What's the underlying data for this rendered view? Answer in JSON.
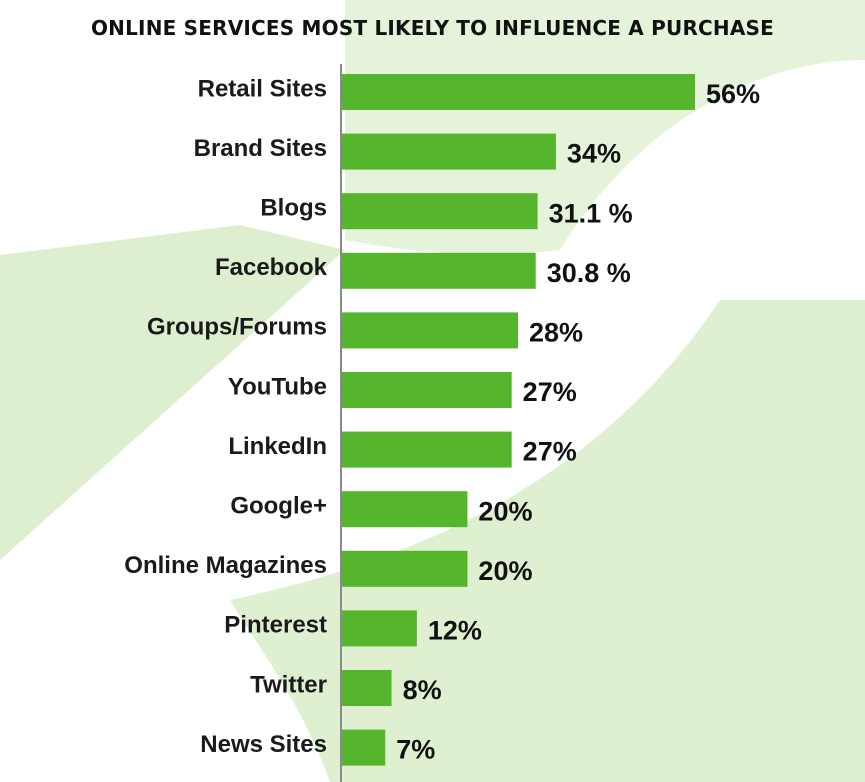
{
  "chart_data": {
    "type": "bar",
    "orientation": "horizontal",
    "title": "ONLINE SERVICES MOST LIKELY TO INFLUENCE A PURCHASE",
    "categories": [
      "Retail Sites",
      "Brand Sites",
      "Blogs",
      "Facebook",
      "Groups/Forums",
      "YouTube",
      "LinkedIn",
      "Google+",
      "Online Magazines",
      "Pinterest",
      "Twitter",
      "News Sites"
    ],
    "values": [
      56,
      34,
      31.1,
      30.8,
      28,
      27,
      27,
      20,
      20,
      12,
      8,
      7
    ],
    "value_labels": [
      "56%",
      "34%",
      "31.1 %",
      "30.8 %",
      "28%",
      "27%",
      "27%",
      "20%",
      "20%",
      "12%",
      "8%",
      "7%"
    ],
    "bar_color": "#55b52c",
    "xlim": [
      0,
      60
    ],
    "grid": false,
    "legend": "none"
  },
  "colors": {
    "background_shape": "#d9efc9",
    "axis": "#8a8a8a",
    "bar": "#55b52c"
  }
}
